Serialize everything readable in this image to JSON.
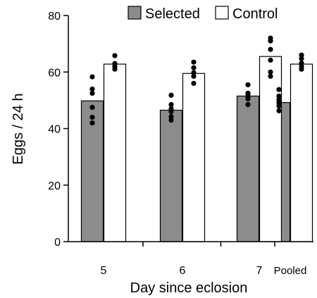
{
  "chart_data": {
    "type": "bar",
    "title": "",
    "xlabel": "Day since eclosion",
    "ylabel": "Eggs / 24 h",
    "categories": [
      "5",
      "6",
      "7",
      "Pooled"
    ],
    "ylim": [
      0,
      80
    ],
    "yticks": [
      0,
      20,
      40,
      60,
      80
    ],
    "legend": {
      "placement": "top-right"
    },
    "grid": false,
    "series": [
      {
        "name": "Selected",
        "color": "#8c8c8c",
        "values": [
          49.8,
          46.5,
          51.5,
          49.2
        ],
        "points": [
          [
            58.3,
            54.0,
            52.5,
            47.5,
            44.0,
            42.0
          ],
          [
            51.8,
            48.5,
            47.0,
            46.0,
            44.2,
            43.0
          ],
          [
            55.5,
            52.5,
            51.5,
            50.5,
            48.5
          ],
          [
            53.8,
            51.5,
            50.2,
            49.2,
            48.0,
            46.3
          ]
        ]
      },
      {
        "name": "Control",
        "color": "#ffffff",
        "values": [
          62.8,
          59.5,
          65.5,
          62.8
        ],
        "points": [
          [
            65.8,
            63.0,
            62.0,
            61.0
          ],
          [
            63.5,
            61.5,
            59.8,
            58.5,
            56.0
          ],
          [
            72.0,
            71.0,
            68.0,
            64.2,
            60.0,
            58.5
          ],
          [
            66.0,
            64.8,
            63.2,
            62.0,
            61.0
          ]
        ]
      }
    ]
  }
}
